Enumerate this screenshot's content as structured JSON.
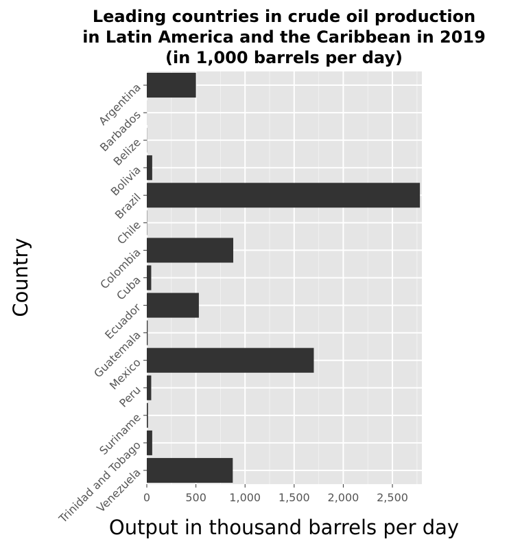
{
  "chart_data": {
    "type": "bar",
    "orientation": "horizontal",
    "title": "Leading countries in crude oil production in Latin America and the Caribbean in 2019 (in 1,000 barrels per day)",
    "title_lines": [
      "Leading countries in crude oil production",
      "in Latin America and the Caribbean in 2019",
      "(in 1,000 barrels per day)"
    ],
    "xlabel": "Output in thousand barrels per day",
    "ylabel": "Country",
    "categories": [
      "Argentina",
      "Barbados",
      "Belize",
      "Bolivia",
      "Brazil",
      "Chile",
      "Colombia",
      "Cuba",
      "Ecuador",
      "Guatemala",
      "Mexico",
      "Peru",
      "Suriname",
      "Trinidad and Tobago",
      "Venezuela"
    ],
    "values": [
      500,
      1,
      2,
      55,
      2780,
      3,
      880,
      45,
      530,
      9,
      1700,
      45,
      12,
      55,
      875
    ],
    "xlim": [
      0,
      2800
    ],
    "xticks": [
      0,
      500,
      1000,
      1500,
      2000,
      2500
    ],
    "xtick_labels": [
      "0",
      "500",
      "1,000",
      "1,500",
      "2,000",
      "2,500"
    ],
    "grid": true,
    "bar_color": "#333333",
    "panel_color": "#e5e5e5"
  }
}
